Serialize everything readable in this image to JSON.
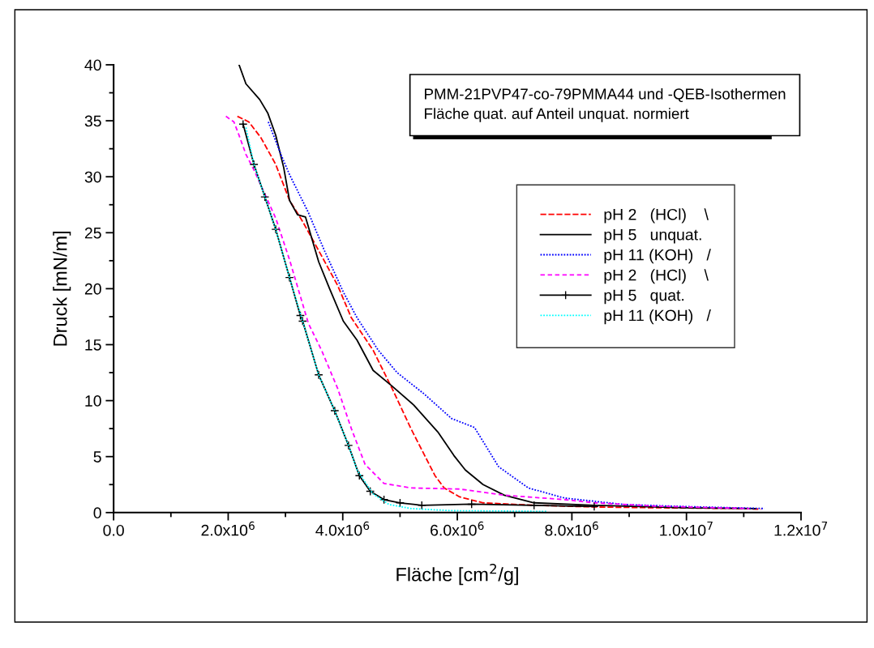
{
  "chart_data": {
    "type": "line",
    "title": "PMM-21PVP47-co-79PMMA44 und -QEB-Isothermen\nFläche quat. auf Anteil unquat. normiert",
    "xlabel": "Fläche [cm$^{2}$/g]",
    "ylabel": "Druck [mN/m]",
    "xlim": [
      0,
      12000000
    ],
    "ylim": [
      0,
      40
    ],
    "xticks": [
      {
        "value": 0,
        "label": "0.0"
      },
      {
        "value": 1000000,
        "label": null
      },
      {
        "value": 2000000,
        "label": "2.0x10$^{6}$"
      },
      {
        "value": 3000000,
        "label": null
      },
      {
        "value": 4000000,
        "label": "4.0x10$^{6}$"
      },
      {
        "value": 5000000,
        "label": null
      },
      {
        "value": 6000000,
        "label": "6.0x10$^{6}$"
      },
      {
        "value": 7000000,
        "label": null
      },
      {
        "value": 8000000,
        "label": "8.0x10$^{6}$"
      },
      {
        "value": 9000000,
        "label": null
      },
      {
        "value": 10000000,
        "label": "1.0x10$^{7}$"
      },
      {
        "value": 11000000,
        "label": null
      },
      {
        "value": 12000000,
        "label": "1.2x10$^{7}$"
      }
    ],
    "yticks": [
      0,
      {
        "value": 2.5,
        "label": null
      },
      5,
      {
        "value": 7.5,
        "label": null
      },
      10,
      {
        "value": 12.5,
        "label": null
      },
      15,
      {
        "value": 17.5,
        "label": null
      },
      20,
      {
        "value": 22.5,
        "label": null
      },
      25,
      {
        "value": 27.5,
        "label": null
      },
      30,
      {
        "value": 32.5,
        "label": null
      },
      35,
      {
        "value": 37.5,
        "label": null
      },
      40
    ],
    "grid": false,
    "legend": "right",
    "series": [
      {
        "name": "pH 2   (HCl)    \\",
        "color": "#ff0000",
        "line_style": "dashed",
        "x": [
          2160000,
          2360000,
          2570000,
          2830000,
          3070000,
          3300000,
          3580000,
          3910000,
          4150000,
          4530000,
          4860000,
          5190000,
          5610000,
          5770000,
          6040000,
          6450000,
          7340000,
          8390000,
          9440000,
          11000000,
          11300000
        ],
        "values": [
          35.4,
          34.9,
          33.5,
          31.1,
          27.9,
          26.0,
          23.4,
          20.3,
          17.4,
          14.5,
          11.1,
          7.5,
          3.3,
          2.2,
          1.4,
          0.87,
          0.65,
          0.5,
          0.43,
          0.36,
          0.3
        ]
      },
      {
        "name": "pH 5   unquat.",
        "color": "#000000",
        "line_style": "solid",
        "x": [
          2190000,
          2310000,
          2550000,
          2690000,
          2830000,
          2970000,
          3070000,
          3210000,
          3350000,
          3580000,
          3770000,
          4010000,
          4250000,
          4530000,
          4860000,
          5240000,
          5660000,
          5940000,
          6140000,
          6450000,
          6820000,
          7340000,
          8390000,
          9960000,
          11200000
        ],
        "values": [
          40,
          38.3,
          36.9,
          35.7,
          33.7,
          30.8,
          27.9,
          26.6,
          26.4,
          22.4,
          20.0,
          17.1,
          15.4,
          12.7,
          11.3,
          9.6,
          7.2,
          5.1,
          3.8,
          2.5,
          1.55,
          0.87,
          0.65,
          0.43,
          0.36
        ]
      },
      {
        "name": "pH 11 (KOH)   /",
        "color": "#0000ff",
        "line_style": "dotted",
        "x": [
          2700000,
          2920000,
          3070000,
          3400000,
          3680000,
          4010000,
          4250000,
          4620000,
          4950000,
          5420000,
          5900000,
          6300000,
          6720000,
          7240000,
          7870000,
          8910000,
          9960000,
          11360000
        ],
        "values": [
          34.9,
          32.0,
          30.2,
          26.8,
          23.4,
          19.7,
          17.4,
          14.5,
          12.5,
          10.6,
          8.4,
          7.6,
          4.1,
          2.2,
          1.3,
          0.72,
          0.54,
          0.36
        ]
      },
      {
        "name": "pH 2   (HCl)    \\",
        "color": "#ff00ff",
        "line_style": "dashed",
        "x": [
          1960000,
          2100000,
          2190000,
          2310000,
          2450000,
          2830000,
          3070000,
          3400000,
          3630000,
          3910000,
          4150000,
          4390000,
          4720000,
          5190000,
          6040000,
          6820000,
          7870000,
          8390000,
          9440000,
          10500000,
          11100000
        ],
        "values": [
          35.4,
          34.9,
          33.7,
          32.0,
          30.6,
          26.3,
          22.6,
          16.9,
          14.5,
          11.1,
          7.5,
          4.3,
          2.6,
          2.2,
          2.1,
          1.55,
          1.16,
          0.87,
          0.58,
          0.43,
          0.36
        ]
      },
      {
        "name": "pH 5   quat.",
        "color": "#000000",
        "line_style": "solid",
        "marker": "cross",
        "x": [
          2260000,
          2450000,
          2640000,
          2830000,
          3070000,
          3260000,
          3300000,
          3580000,
          3860000,
          4100000,
          4290000,
          4480000,
          4720000,
          5000000,
          5380000,
          6250000,
          7340000,
          8390000
        ],
        "values": [
          34.7,
          31.1,
          28.2,
          25.3,
          21.0,
          17.6,
          17.1,
          12.3,
          9.1,
          6.0,
          3.3,
          1.9,
          1.16,
          0.87,
          0.65,
          0.75,
          0.65,
          0.54
        ]
      },
      {
        "name": "pH 11 (KOH)   /",
        "color": "#00ffff",
        "line_style": "dotted",
        "x": [
          2310000,
          2450000,
          2640000,
          2830000,
          3070000,
          3300000,
          3580000,
          3860000,
          4100000,
          4250000,
          4530000,
          4810000,
          5190000,
          5900000,
          7560000
        ],
        "values": [
          34.4,
          31.1,
          28.2,
          25.3,
          21.0,
          17.1,
          12.3,
          9.1,
          6.0,
          3.8,
          1.66,
          0.72,
          0.36,
          0.17,
          0.1
        ]
      }
    ]
  }
}
